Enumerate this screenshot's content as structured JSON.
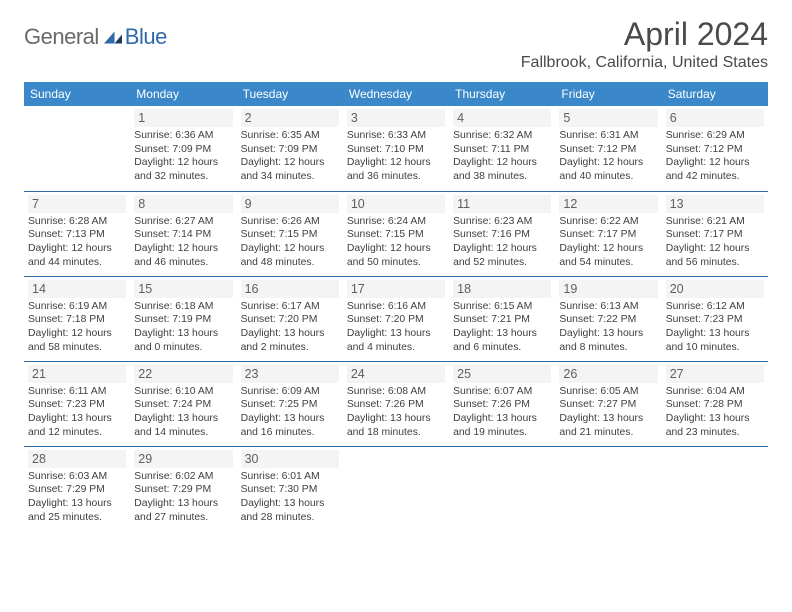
{
  "brand": {
    "word1": "General",
    "word2": "Blue"
  },
  "title": {
    "month": "April 2024",
    "location": "Fallbrook, California, United States"
  },
  "colors": {
    "header_bg": "#3a88c9",
    "header_text": "#ffffff",
    "row_border": "#2f6aa8",
    "daynum_bg": "#f4f4f4",
    "text": "#3f3f3f",
    "brand_gray": "#6a6a6a",
    "brand_blue": "#2f6aa8"
  },
  "calendar": {
    "type": "table",
    "day_headers": [
      "Sunday",
      "Monday",
      "Tuesday",
      "Wednesday",
      "Thursday",
      "Friday",
      "Saturday"
    ],
    "weeks": [
      [
        null,
        {
          "n": "1",
          "sr": "Sunrise: 6:36 AM",
          "ss": "Sunset: 7:09 PM",
          "d1": "Daylight: 12 hours",
          "d2": "and 32 minutes."
        },
        {
          "n": "2",
          "sr": "Sunrise: 6:35 AM",
          "ss": "Sunset: 7:09 PM",
          "d1": "Daylight: 12 hours",
          "d2": "and 34 minutes."
        },
        {
          "n": "3",
          "sr": "Sunrise: 6:33 AM",
          "ss": "Sunset: 7:10 PM",
          "d1": "Daylight: 12 hours",
          "d2": "and 36 minutes."
        },
        {
          "n": "4",
          "sr": "Sunrise: 6:32 AM",
          "ss": "Sunset: 7:11 PM",
          "d1": "Daylight: 12 hours",
          "d2": "and 38 minutes."
        },
        {
          "n": "5",
          "sr": "Sunrise: 6:31 AM",
          "ss": "Sunset: 7:12 PM",
          "d1": "Daylight: 12 hours",
          "d2": "and 40 minutes."
        },
        {
          "n": "6",
          "sr": "Sunrise: 6:29 AM",
          "ss": "Sunset: 7:12 PM",
          "d1": "Daylight: 12 hours",
          "d2": "and 42 minutes."
        }
      ],
      [
        {
          "n": "7",
          "sr": "Sunrise: 6:28 AM",
          "ss": "Sunset: 7:13 PM",
          "d1": "Daylight: 12 hours",
          "d2": "and 44 minutes."
        },
        {
          "n": "8",
          "sr": "Sunrise: 6:27 AM",
          "ss": "Sunset: 7:14 PM",
          "d1": "Daylight: 12 hours",
          "d2": "and 46 minutes."
        },
        {
          "n": "9",
          "sr": "Sunrise: 6:26 AM",
          "ss": "Sunset: 7:15 PM",
          "d1": "Daylight: 12 hours",
          "d2": "and 48 minutes."
        },
        {
          "n": "10",
          "sr": "Sunrise: 6:24 AM",
          "ss": "Sunset: 7:15 PM",
          "d1": "Daylight: 12 hours",
          "d2": "and 50 minutes."
        },
        {
          "n": "11",
          "sr": "Sunrise: 6:23 AM",
          "ss": "Sunset: 7:16 PM",
          "d1": "Daylight: 12 hours",
          "d2": "and 52 minutes."
        },
        {
          "n": "12",
          "sr": "Sunrise: 6:22 AM",
          "ss": "Sunset: 7:17 PM",
          "d1": "Daylight: 12 hours",
          "d2": "and 54 minutes."
        },
        {
          "n": "13",
          "sr": "Sunrise: 6:21 AM",
          "ss": "Sunset: 7:17 PM",
          "d1": "Daylight: 12 hours",
          "d2": "and 56 minutes."
        }
      ],
      [
        {
          "n": "14",
          "sr": "Sunrise: 6:19 AM",
          "ss": "Sunset: 7:18 PM",
          "d1": "Daylight: 12 hours",
          "d2": "and 58 minutes."
        },
        {
          "n": "15",
          "sr": "Sunrise: 6:18 AM",
          "ss": "Sunset: 7:19 PM",
          "d1": "Daylight: 13 hours",
          "d2": "and 0 minutes."
        },
        {
          "n": "16",
          "sr": "Sunrise: 6:17 AM",
          "ss": "Sunset: 7:20 PM",
          "d1": "Daylight: 13 hours",
          "d2": "and 2 minutes."
        },
        {
          "n": "17",
          "sr": "Sunrise: 6:16 AM",
          "ss": "Sunset: 7:20 PM",
          "d1": "Daylight: 13 hours",
          "d2": "and 4 minutes."
        },
        {
          "n": "18",
          "sr": "Sunrise: 6:15 AM",
          "ss": "Sunset: 7:21 PM",
          "d1": "Daylight: 13 hours",
          "d2": "and 6 minutes."
        },
        {
          "n": "19",
          "sr": "Sunrise: 6:13 AM",
          "ss": "Sunset: 7:22 PM",
          "d1": "Daylight: 13 hours",
          "d2": "and 8 minutes."
        },
        {
          "n": "20",
          "sr": "Sunrise: 6:12 AM",
          "ss": "Sunset: 7:23 PM",
          "d1": "Daylight: 13 hours",
          "d2": "and 10 minutes."
        }
      ],
      [
        {
          "n": "21",
          "sr": "Sunrise: 6:11 AM",
          "ss": "Sunset: 7:23 PM",
          "d1": "Daylight: 13 hours",
          "d2": "and 12 minutes."
        },
        {
          "n": "22",
          "sr": "Sunrise: 6:10 AM",
          "ss": "Sunset: 7:24 PM",
          "d1": "Daylight: 13 hours",
          "d2": "and 14 minutes."
        },
        {
          "n": "23",
          "sr": "Sunrise: 6:09 AM",
          "ss": "Sunset: 7:25 PM",
          "d1": "Daylight: 13 hours",
          "d2": "and 16 minutes."
        },
        {
          "n": "24",
          "sr": "Sunrise: 6:08 AM",
          "ss": "Sunset: 7:26 PM",
          "d1": "Daylight: 13 hours",
          "d2": "and 18 minutes."
        },
        {
          "n": "25",
          "sr": "Sunrise: 6:07 AM",
          "ss": "Sunset: 7:26 PM",
          "d1": "Daylight: 13 hours",
          "d2": "and 19 minutes."
        },
        {
          "n": "26",
          "sr": "Sunrise: 6:05 AM",
          "ss": "Sunset: 7:27 PM",
          "d1": "Daylight: 13 hours",
          "d2": "and 21 minutes."
        },
        {
          "n": "27",
          "sr": "Sunrise: 6:04 AM",
          "ss": "Sunset: 7:28 PM",
          "d1": "Daylight: 13 hours",
          "d2": "and 23 minutes."
        }
      ],
      [
        {
          "n": "28",
          "sr": "Sunrise: 6:03 AM",
          "ss": "Sunset: 7:29 PM",
          "d1": "Daylight: 13 hours",
          "d2": "and 25 minutes."
        },
        {
          "n": "29",
          "sr": "Sunrise: 6:02 AM",
          "ss": "Sunset: 7:29 PM",
          "d1": "Daylight: 13 hours",
          "d2": "and 27 minutes."
        },
        {
          "n": "30",
          "sr": "Sunrise: 6:01 AM",
          "ss": "Sunset: 7:30 PM",
          "d1": "Daylight: 13 hours",
          "d2": "and 28 minutes."
        },
        null,
        null,
        null,
        null
      ]
    ]
  }
}
